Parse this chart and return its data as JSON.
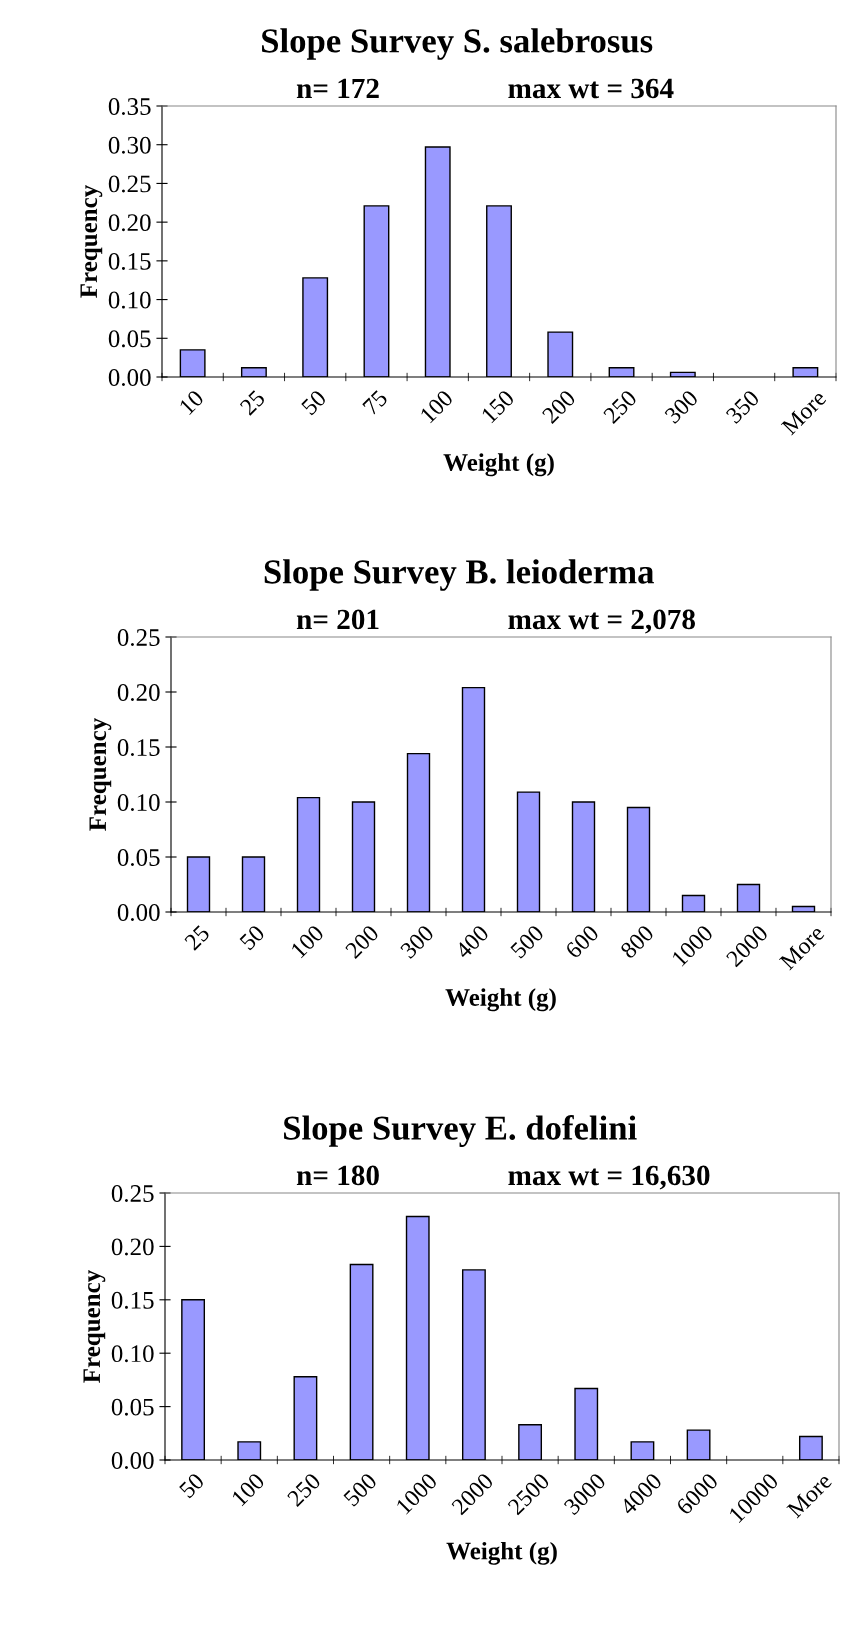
{
  "chart_data": [
    {
      "type": "bar",
      "title": "Slope Survey S. salebrosus",
      "annotations": [
        "n= 172",
        "max wt = 364"
      ],
      "xlabel": "Weight (g)",
      "ylabel": "Frequency",
      "categories": [
        "10",
        "25",
        "50",
        "75",
        "100",
        "150",
        "200",
        "250",
        "300",
        "350",
        "More"
      ],
      "values": [
        0.035,
        0.012,
        0.128,
        0.221,
        0.297,
        0.221,
        0.058,
        0.012,
        0.006,
        0,
        0.012
      ],
      "color": "#9999ff",
      "ylim": [
        0,
        0.35
      ],
      "yticks": [
        {
          "value": 0,
          "label": "0.00"
        },
        {
          "value": 0.05,
          "label": "0.05"
        },
        {
          "value": 0.1,
          "label": "0.10"
        },
        {
          "value": 0.15,
          "label": "0.15"
        },
        {
          "value": 0.2,
          "label": "0.20"
        },
        {
          "value": 0.25,
          "label": "0.25"
        },
        {
          "value": 0.3,
          "label": "0.30"
        },
        {
          "value": 0.35,
          "label": "0.35"
        }
      ],
      "grid": false
    },
    {
      "type": "bar",
      "title": "Slope Survey B. leioderma",
      "annotations": [
        "n= 201",
        "max wt = 2,078"
      ],
      "xlabel": "Weight (g)",
      "ylabel": "Frequency",
      "categories": [
        "25",
        "50",
        "100",
        "200",
        "300",
        "400",
        "500",
        "600",
        "800",
        "1000",
        "2000",
        "More"
      ],
      "values": [
        0.05,
        0.05,
        0.104,
        0.1,
        0.144,
        0.204,
        0.109,
        0.1,
        0.095,
        0.015,
        0.025,
        0.005
      ],
      "color": "#9999ff",
      "ylim": [
        0,
        0.25
      ],
      "yticks": [
        {
          "value": 0,
          "label": "0.00"
        },
        {
          "value": 0.05,
          "label": "0.05"
        },
        {
          "value": 0.1,
          "label": "0.10"
        },
        {
          "value": 0.15,
          "label": "0.15"
        },
        {
          "value": 0.2,
          "label": "0.20"
        },
        {
          "value": 0.25,
          "label": "0.25"
        }
      ],
      "grid": false
    },
    {
      "type": "bar",
      "title": "Slope Survey E. dofelini",
      "annotations": [
        "n= 180",
        "max wt = 16,630"
      ],
      "xlabel": "Weight (g)",
      "ylabel": "Frequency",
      "categories": [
        "50",
        "100",
        "250",
        "500",
        "1000",
        "2000",
        "2500",
        "3000",
        "4000",
        "6000",
        "10000",
        "More"
      ],
      "values": [
        0.15,
        0.017,
        0.078,
        0.183,
        0.228,
        0.178,
        0.033,
        0.067,
        0.017,
        0.028,
        0,
        0.022
      ],
      "color": "#9999ff",
      "ylim": [
        0,
        0.25
      ],
      "yticks": [
        {
          "value": 0,
          "label": "0.00"
        },
        {
          "value": 0.05,
          "label": "0.05"
        },
        {
          "value": 0.1,
          "label": "0.10"
        },
        {
          "value": 0.15,
          "label": "0.15"
        },
        {
          "value": 0.2,
          "label": "0.20"
        },
        {
          "value": 0.25,
          "label": "0.25"
        }
      ],
      "grid": false
    }
  ]
}
